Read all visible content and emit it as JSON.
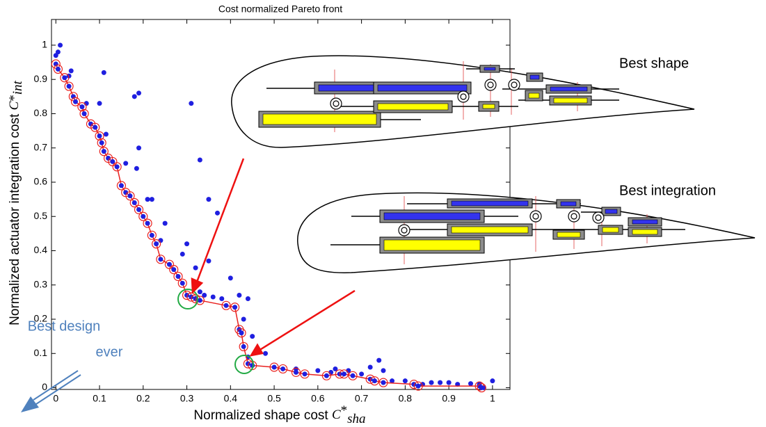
{
  "chart_data": {
    "type": "scatter",
    "title": "Cost normalized Pareto front",
    "xlabel": {
      "text": "Normalized shape cost",
      "symbol": "C",
      "sup": "*",
      "sub": "sha"
    },
    "ylabel": {
      "text": "Normalized actuator integration cost",
      "symbol": "C",
      "sup": "*",
      "sub": "int"
    },
    "xlim": [
      -0.01,
      1.04
    ],
    "ylim": [
      -0.005,
      1.075
    ],
    "xticks": [
      0,
      0.1,
      0.2,
      0.3,
      0.4,
      0.5,
      0.6,
      0.7,
      0.8,
      0.9,
      1
    ],
    "yticks": [
      0,
      0.1,
      0.2,
      0.3,
      0.4,
      0.5,
      0.6,
      0.7,
      0.8,
      0.9,
      1
    ],
    "grid": false,
    "series": [
      {
        "color": "#1f1fe0",
        "marker": "dot",
        "x": [
          0.0,
          0.005,
          0.01,
          0.03,
          0.035,
          0.07,
          0.1,
          0.11,
          0.115,
          0.16,
          0.18,
          0.19,
          0.19,
          0.185,
          0.21,
          0.22,
          0.24,
          0.25,
          0.29,
          0.3,
          0.31,
          0.32,
          0.33,
          0.35,
          0.37,
          0.35,
          0.34,
          0.33,
          0.36,
          0.38,
          0.4,
          0.42,
          0.44,
          0.43,
          0.45,
          0.44,
          0.48,
          0.55,
          0.6,
          0.63,
          0.64,
          0.67,
          0.7,
          0.72,
          0.74,
          0.75,
          0.77,
          0.8,
          0.84,
          0.86,
          0.88,
          0.9,
          0.92,
          0.95,
          0.97,
          1.0,
          0.98
        ],
        "values": [
          0.97,
          0.98,
          1.0,
          0.91,
          0.925,
          0.83,
          0.83,
          0.92,
          0.74,
          0.655,
          0.85,
          0.86,
          0.7,
          0.64,
          0.55,
          0.55,
          0.43,
          0.48,
          0.39,
          0.42,
          0.83,
          0.35,
          0.665,
          0.55,
          0.51,
          0.37,
          0.27,
          0.28,
          0.265,
          0.26,
          0.32,
          0.27,
          0.26,
          0.2,
          0.15,
          0.09,
          0.1,
          0.055,
          0.05,
          0.045,
          0.055,
          0.05,
          0.04,
          0.06,
          0.08,
          0.05,
          0.02,
          0.02,
          0.01,
          0.015,
          0.015,
          0.015,
          0.01,
          0.012,
          0.01,
          0.02,
          0.0
        ]
      },
      {
        "color": "#e8201e",
        "marker": "ring-line",
        "x": [
          0.0,
          0.005,
          0.02,
          0.03,
          0.04,
          0.045,
          0.06,
          0.065,
          0.08,
          0.09,
          0.1,
          0.105,
          0.11,
          0.12,
          0.13,
          0.14,
          0.15,
          0.16,
          0.17,
          0.18,
          0.19,
          0.2,
          0.21,
          0.22,
          0.23,
          0.24,
          0.26,
          0.27,
          0.28,
          0.29,
          0.3,
          0.31,
          0.32,
          0.33,
          0.39,
          0.41,
          0.42,
          0.425,
          0.43,
          0.44,
          0.45,
          0.5,
          0.52,
          0.55,
          0.57,
          0.62,
          0.65,
          0.66,
          0.68,
          0.72,
          0.73,
          0.75,
          0.82,
          0.83,
          0.97,
          0.975
        ],
        "values": [
          0.945,
          0.93,
          0.905,
          0.88,
          0.85,
          0.835,
          0.82,
          0.8,
          0.77,
          0.76,
          0.735,
          0.715,
          0.69,
          0.67,
          0.66,
          0.645,
          0.59,
          0.57,
          0.56,
          0.54,
          0.52,
          0.5,
          0.48,
          0.445,
          0.42,
          0.375,
          0.36,
          0.345,
          0.325,
          0.305,
          0.27,
          0.265,
          0.26,
          0.255,
          0.24,
          0.235,
          0.17,
          0.16,
          0.12,
          0.07,
          0.065,
          0.06,
          0.055,
          0.045,
          0.04,
          0.035,
          0.04,
          0.04,
          0.035,
          0.025,
          0.02,
          0.015,
          0.01,
          0.005,
          0.005,
          0.0
        ]
      }
    ],
    "annotations": {
      "best_shape": "Best shape",
      "best_integration": "Best integration",
      "best_design": [
        "Best design",
        "ever"
      ]
    }
  }
}
